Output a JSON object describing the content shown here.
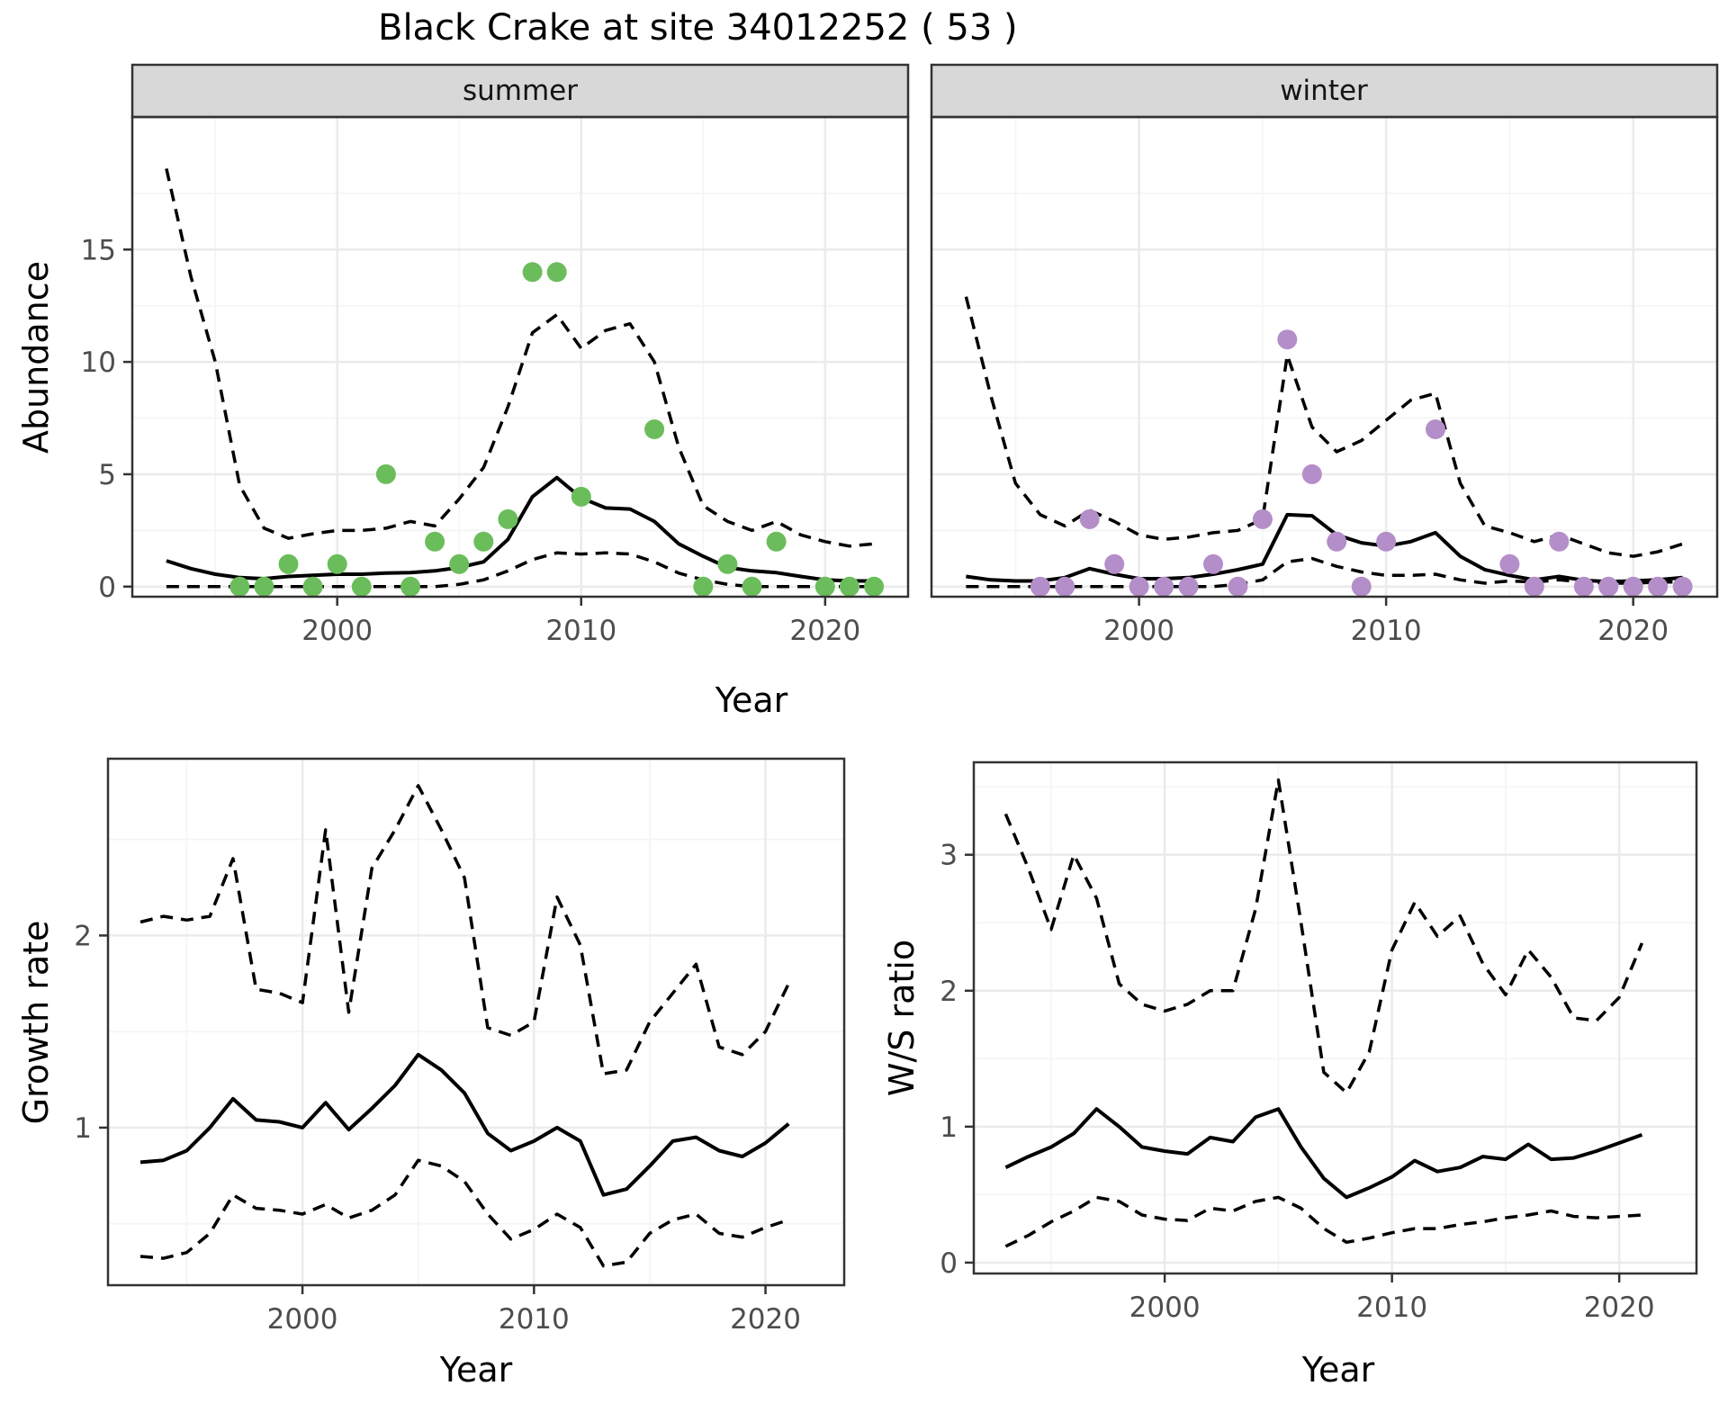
{
  "labels": {
    "title": "Black Crake at site 34012252 ( 53 )",
    "abundance_axis": "Abundance",
    "year_axis_top": "Year",
    "growth_axis": "Growth rate",
    "year_axis_growth": "Year",
    "ws_axis": "W/S ratio",
    "year_axis_ws": "Year"
  },
  "colors": {
    "summer_points": "#6BBD5B",
    "winter_points": "#B48EC8",
    "line": "#000000",
    "strip_bg": "#D8D8D8",
    "panel_border": "#333333",
    "grid_major": "#EBEBEB",
    "grid_minor": "#F5F5F5",
    "tick_label": "#4D4D4D"
  },
  "chart_data": [
    {
      "type": "scatter",
      "facet": "summer",
      "xlabel": "Year",
      "ylabel": "Abundance",
      "xlim": [
        1991.6,
        2023.4
      ],
      "ylim": [
        -0.45,
        20.9
      ],
      "xticks": [
        2000,
        2010,
        2020
      ],
      "xticks_minor": [
        1995,
        2005,
        2015
      ],
      "yticks": [
        0,
        5,
        10,
        15
      ],
      "yticks_minor": [
        2.5,
        7.5,
        12.5,
        17.5
      ],
      "points": {
        "color": "#6BBD5B",
        "x": [
          1996,
          1997,
          1998,
          1999,
          2000,
          2001,
          2002,
          2003,
          2004,
          2005,
          2006,
          2007,
          2008,
          2009,
          2010,
          2013,
          2015,
          2016,
          2017,
          2018,
          2020,
          2021,
          2022
        ],
        "y": [
          0,
          0,
          1,
          0,
          1,
          0,
          5,
          0,
          2,
          1,
          2,
          3,
          14,
          14,
          4,
          7,
          0,
          1,
          0,
          2,
          0,
          0,
          0
        ]
      },
      "series": [
        {
          "name": "fitted mean",
          "style": "solid",
          "x": [
            1993,
            1994,
            1995,
            1996,
            1997,
            1998,
            1999,
            2000,
            2001,
            2002,
            2003,
            2004,
            2005,
            2006,
            2007,
            2008,
            2009,
            2010,
            2011,
            2012,
            2013,
            2014,
            2015,
            2016,
            2017,
            2018,
            2019,
            2020,
            2021,
            2022
          ],
          "y": [
            1.15,
            0.8,
            0.55,
            0.4,
            0.35,
            0.45,
            0.5,
            0.55,
            0.55,
            0.6,
            0.62,
            0.7,
            0.85,
            1.1,
            2.1,
            4.0,
            4.85,
            3.95,
            3.5,
            3.45,
            2.9,
            1.9,
            1.35,
            0.85,
            0.7,
            0.62,
            0.45,
            0.3,
            0.25,
            0.25
          ]
        },
        {
          "name": "upper CI",
          "style": "dashed",
          "x": [
            1993,
            1994,
            1995,
            1996,
            1997,
            1998,
            1999,
            2000,
            2001,
            2002,
            2003,
            2004,
            2005,
            2006,
            2007,
            2008,
            2009,
            2010,
            2011,
            2012,
            2013,
            2014,
            2015,
            2016,
            2017,
            2018,
            2019,
            2020,
            2021,
            2022
          ],
          "y": [
            18.6,
            13.8,
            10.0,
            4.5,
            2.6,
            2.15,
            2.35,
            2.5,
            2.5,
            2.6,
            2.9,
            2.7,
            3.9,
            5.3,
            8.0,
            11.3,
            12.1,
            10.6,
            11.4,
            11.7,
            10.0,
            6.2,
            3.6,
            2.9,
            2.5,
            2.9,
            2.3,
            2.0,
            1.8,
            1.9
          ]
        },
        {
          "name": "lower CI",
          "style": "dashed",
          "x": [
            1993,
            1994,
            1995,
            1996,
            1997,
            1998,
            1999,
            2000,
            2001,
            2002,
            2003,
            2004,
            2005,
            2006,
            2007,
            2008,
            2009,
            2010,
            2011,
            2012,
            2013,
            2014,
            2015,
            2016,
            2017,
            2018,
            2019,
            2020,
            2021,
            2022
          ],
          "y": [
            0,
            0,
            0,
            0,
            0,
            0,
            0,
            0,
            0,
            0,
            0,
            0,
            0.1,
            0.3,
            0.7,
            1.2,
            1.5,
            1.45,
            1.5,
            1.45,
            1.1,
            0.6,
            0.3,
            0.1,
            0,
            0,
            0,
            0,
            0,
            0
          ]
        }
      ]
    },
    {
      "type": "scatter",
      "facet": "winter",
      "xlabel": "Year",
      "ylabel": "Abundance",
      "xlim": [
        1991.6,
        2023.4
      ],
      "ylim": [
        -0.45,
        20.9
      ],
      "xticks": [
        2000,
        2010,
        2020
      ],
      "xticks_minor": [
        1995,
        2005,
        2015
      ],
      "yticks": [
        0,
        5,
        10,
        15
      ],
      "yticks_minor": [
        2.5,
        7.5,
        12.5,
        17.5
      ],
      "points": {
        "color": "#B48EC8",
        "x": [
          1996,
          1997,
          1998,
          1999,
          2000,
          2001,
          2002,
          2003,
          2004,
          2005,
          2006,
          2007,
          2008,
          2009,
          2010,
          2012,
          2015,
          2016,
          2017,
          2018,
          2019,
          2020,
          2021,
          2022
        ],
        "y": [
          0,
          0,
          3,
          1,
          0,
          0,
          0,
          1,
          0,
          3,
          11,
          5,
          2,
          0,
          2,
          7,
          1,
          0,
          2,
          0,
          0,
          0,
          0,
          0
        ]
      },
      "series": [
        {
          "name": "fitted mean",
          "style": "solid",
          "x": [
            1993,
            1994,
            1995,
            1996,
            1997,
            1998,
            1999,
            2000,
            2001,
            2002,
            2003,
            2004,
            2005,
            2006,
            2007,
            2008,
            2009,
            2010,
            2011,
            2012,
            2013,
            2014,
            2015,
            2016,
            2017,
            2018,
            2019,
            2020,
            2021,
            2022
          ],
          "y": [
            0.45,
            0.3,
            0.25,
            0.25,
            0.4,
            0.8,
            0.55,
            0.35,
            0.35,
            0.4,
            0.55,
            0.75,
            1.0,
            3.2,
            3.15,
            2.3,
            1.95,
            1.8,
            2.0,
            2.4,
            1.35,
            0.75,
            0.5,
            0.3,
            0.45,
            0.28,
            0.22,
            0.25,
            0.3,
            0.4
          ]
        },
        {
          "name": "upper CI",
          "style": "dashed",
          "x": [
            1993,
            1994,
            1995,
            1996,
            1997,
            1998,
            1999,
            2000,
            2001,
            2002,
            2003,
            2004,
            2005,
            2006,
            2007,
            2008,
            2009,
            2010,
            2011,
            2012,
            2013,
            2014,
            2015,
            2016,
            2017,
            2018,
            2019,
            2020,
            2021,
            2022
          ],
          "y": [
            12.9,
            8.5,
            4.6,
            3.2,
            2.7,
            3.4,
            2.9,
            2.3,
            2.1,
            2.2,
            2.4,
            2.5,
            3.0,
            10.3,
            7.1,
            6.0,
            6.5,
            7.4,
            8.3,
            8.6,
            4.6,
            2.7,
            2.4,
            2.0,
            2.3,
            1.9,
            1.5,
            1.35,
            1.55,
            1.9
          ]
        },
        {
          "name": "lower CI",
          "style": "dashed",
          "x": [
            1993,
            1994,
            1995,
            1996,
            1997,
            1998,
            1999,
            2000,
            2001,
            2002,
            2003,
            2004,
            2005,
            2006,
            2007,
            2008,
            2009,
            2010,
            2011,
            2012,
            2013,
            2014,
            2015,
            2016,
            2017,
            2018,
            2019,
            2020,
            2021,
            2022
          ],
          "y": [
            0,
            0,
            0,
            0,
            0,
            0,
            0,
            0,
            0,
            0,
            0,
            0.1,
            0.3,
            1.1,
            1.25,
            0.9,
            0.65,
            0.5,
            0.5,
            0.55,
            0.3,
            0.15,
            0.25,
            0.2,
            0.3,
            0.2,
            0.15,
            0.15,
            0.2,
            0.2
          ]
        }
      ]
    },
    {
      "type": "line",
      "facet": "",
      "xlabel": "Year",
      "ylabel": "Growth rate",
      "xlim": [
        1991.6,
        2023.4
      ],
      "ylim": [
        0.18,
        2.92
      ],
      "xticks": [
        2000,
        2010,
        2020
      ],
      "xticks_minor": [
        1995,
        2005,
        2015
      ],
      "yticks": [
        1,
        2
      ],
      "yticks_minor": [
        0.5,
        1.5,
        2.5
      ],
      "series": [
        {
          "name": "growth rate",
          "style": "solid",
          "x": [
            1993,
            1994,
            1995,
            1996,
            1997,
            1998,
            1999,
            2000,
            2001,
            2002,
            2003,
            2004,
            2005,
            2006,
            2007,
            2008,
            2009,
            2010,
            2011,
            2012,
            2013,
            2014,
            2015,
            2016,
            2017,
            2018,
            2019,
            2020,
            2021
          ],
          "y": [
            0.82,
            0.83,
            0.88,
            1.0,
            1.15,
            1.04,
            1.03,
            1.0,
            1.13,
            0.99,
            1.1,
            1.22,
            1.38,
            1.3,
            1.18,
            0.97,
            0.88,
            0.93,
            1.0,
            0.93,
            0.65,
            0.68,
            0.8,
            0.93,
            0.95,
            0.88,
            0.85,
            0.92,
            1.02
          ]
        },
        {
          "name": "upper CI",
          "style": "dashed",
          "x": [
            1993,
            1994,
            1995,
            1996,
            1997,
            1998,
            1999,
            2000,
            2001,
            2002,
            2003,
            2004,
            2005,
            2006,
            2007,
            2008,
            2009,
            2010,
            2011,
            2012,
            2013,
            2014,
            2015,
            2016,
            2017,
            2018,
            2019,
            2020,
            2021
          ],
          "y": [
            2.07,
            2.1,
            2.08,
            2.1,
            2.4,
            1.72,
            1.7,
            1.65,
            2.55,
            1.6,
            2.35,
            2.55,
            2.78,
            2.55,
            2.3,
            1.52,
            1.48,
            1.55,
            2.2,
            1.95,
            1.28,
            1.3,
            1.55,
            1.7,
            1.85,
            1.42,
            1.38,
            1.5,
            1.75
          ]
        },
        {
          "name": "lower CI",
          "style": "dashed",
          "x": [
            1993,
            1994,
            1995,
            1996,
            1997,
            1998,
            1999,
            2000,
            2001,
            2002,
            2003,
            2004,
            2005,
            2006,
            2007,
            2008,
            2009,
            2010,
            2011,
            2012,
            2013,
            2014,
            2015,
            2016,
            2017,
            2018,
            2019,
            2020,
            2021
          ],
          "y": [
            0.33,
            0.32,
            0.35,
            0.45,
            0.65,
            0.58,
            0.57,
            0.55,
            0.6,
            0.53,
            0.57,
            0.65,
            0.83,
            0.8,
            0.72,
            0.55,
            0.42,
            0.47,
            0.55,
            0.48,
            0.28,
            0.3,
            0.45,
            0.52,
            0.55,
            0.45,
            0.43,
            0.48,
            0.52
          ]
        }
      ]
    },
    {
      "type": "line",
      "facet": "",
      "xlabel": "Year",
      "ylabel": "W/S ratio",
      "xlim": [
        1991.6,
        2023.4
      ],
      "ylim": [
        -0.08,
        3.68
      ],
      "xticks": [
        2000,
        2010,
        2020
      ],
      "xticks_minor": [
        1995,
        2005,
        2015
      ],
      "yticks": [
        0,
        1,
        2,
        3
      ],
      "yticks_minor": [
        0.5,
        1.5,
        2.5,
        3.5
      ],
      "series": [
        {
          "name": "W/S ratio",
          "style": "solid",
          "x": [
            1993,
            1994,
            1995,
            1996,
            1997,
            1998,
            1999,
            2000,
            2001,
            2002,
            2003,
            2004,
            2005,
            2006,
            2007,
            2008,
            2009,
            2010,
            2011,
            2012,
            2013,
            2014,
            2015,
            2016,
            2017,
            2018,
            2019,
            2020,
            2021
          ],
          "y": [
            0.7,
            0.78,
            0.85,
            0.95,
            1.13,
            1.0,
            0.85,
            0.82,
            0.8,
            0.92,
            0.89,
            1.07,
            1.13,
            0.85,
            0.62,
            0.48,
            0.55,
            0.63,
            0.75,
            0.67,
            0.7,
            0.78,
            0.76,
            0.87,
            0.76,
            0.77,
            0.82,
            0.88,
            0.94
          ]
        },
        {
          "name": "upper CI",
          "style": "dashed",
          "x": [
            1993,
            1994,
            1995,
            1996,
            1997,
            1998,
            1999,
            2000,
            2001,
            2002,
            2003,
            2004,
            2005,
            2006,
            2007,
            2008,
            2009,
            2010,
            2011,
            2012,
            2013,
            2014,
            2015,
            2016,
            2017,
            2018,
            2019,
            2020,
            2021
          ],
          "y": [
            3.3,
            2.9,
            2.45,
            3.0,
            2.68,
            2.05,
            1.9,
            1.85,
            1.9,
            2.0,
            2.0,
            2.6,
            3.55,
            2.5,
            1.4,
            1.25,
            1.55,
            2.3,
            2.65,
            2.4,
            2.55,
            2.2,
            1.97,
            2.3,
            2.1,
            1.8,
            1.78,
            1.95,
            2.35
          ]
        },
        {
          "name": "lower CI",
          "style": "dashed",
          "x": [
            1993,
            1994,
            1995,
            1996,
            1997,
            1998,
            1999,
            2000,
            2001,
            2002,
            2003,
            2004,
            2005,
            2006,
            2007,
            2008,
            2009,
            2010,
            2011,
            2012,
            2013,
            2014,
            2015,
            2016,
            2017,
            2018,
            2019,
            2020,
            2021
          ],
          "y": [
            0.12,
            0.2,
            0.3,
            0.38,
            0.48,
            0.45,
            0.35,
            0.32,
            0.31,
            0.4,
            0.38,
            0.45,
            0.48,
            0.4,
            0.25,
            0.15,
            0.18,
            0.22,
            0.25,
            0.25,
            0.28,
            0.3,
            0.33,
            0.35,
            0.38,
            0.34,
            0.33,
            0.34,
            0.35
          ]
        }
      ]
    }
  ]
}
